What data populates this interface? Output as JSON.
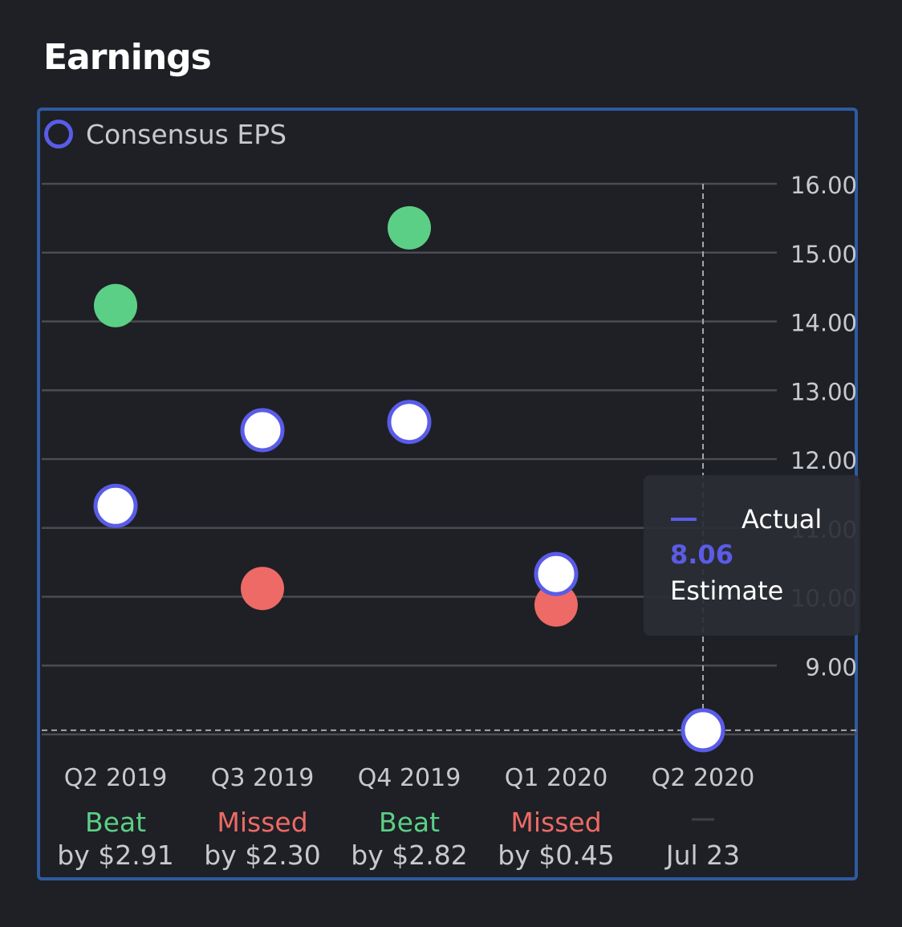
{
  "header": {
    "title": "Earnings"
  },
  "legend": {
    "label": "Consensus EPS"
  },
  "tooltip": {
    "actual_label": "Actual",
    "value": "8.06",
    "estimate_label": "Estimate"
  },
  "colors": {
    "estimate": "#5a5ce8",
    "beat": "#5ccf86",
    "missed": "#ee6a66",
    "grid": "#4a4c52",
    "axis_text": "#c7c9ce"
  },
  "chart_data": {
    "type": "scatter",
    "title": "",
    "ylim": [
      8,
      16
    ],
    "yticks": [
      "9.00",
      "10.00",
      "11.00",
      "12.00",
      "13.00",
      "14.00",
      "15.00",
      "16.00"
    ],
    "categories": [
      "Q2 2019",
      "Q3 2019",
      "Q4 2019",
      "Q1 2020",
      "Q2 2020"
    ],
    "estimate": [
      11.32,
      12.42,
      12.54,
      10.33,
      8.06
    ],
    "actual": [
      14.23,
      10.12,
      15.36,
      9.88,
      null
    ],
    "results": [
      {
        "status": "Beat",
        "detail": "by $2.91"
      },
      {
        "status": "Missed",
        "detail": "by $2.30"
      },
      {
        "status": "Beat",
        "detail": "by $2.82"
      },
      {
        "status": "Missed",
        "detail": "by $0.45"
      },
      {
        "status": "—",
        "detail": "Jul 23"
      }
    ],
    "grid": true,
    "legend_position": "top-left"
  }
}
